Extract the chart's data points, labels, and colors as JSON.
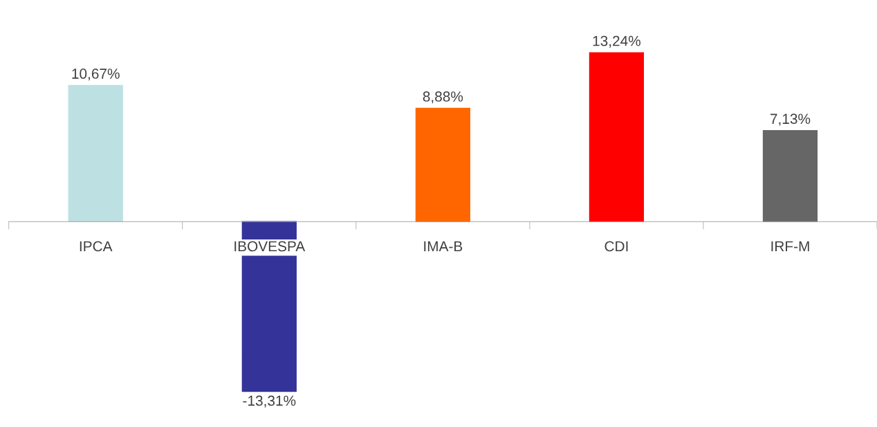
{
  "chart_data": {
    "type": "bar",
    "categories": [
      "IPCA",
      "IBOVESPA",
      "IMA-B",
      "CDI",
      "IRF-M"
    ],
    "values": [
      10.67,
      -13.31,
      8.88,
      13.24,
      7.13
    ],
    "value_labels": [
      "10,67%",
      "-13,31%",
      "8,88%",
      "13,24%",
      "7,13%"
    ],
    "colors": [
      "#bde0e3",
      "#333399",
      "#ff6600",
      "#ff0000",
      "#666666"
    ],
    "grid": false,
    "legend": false
  }
}
